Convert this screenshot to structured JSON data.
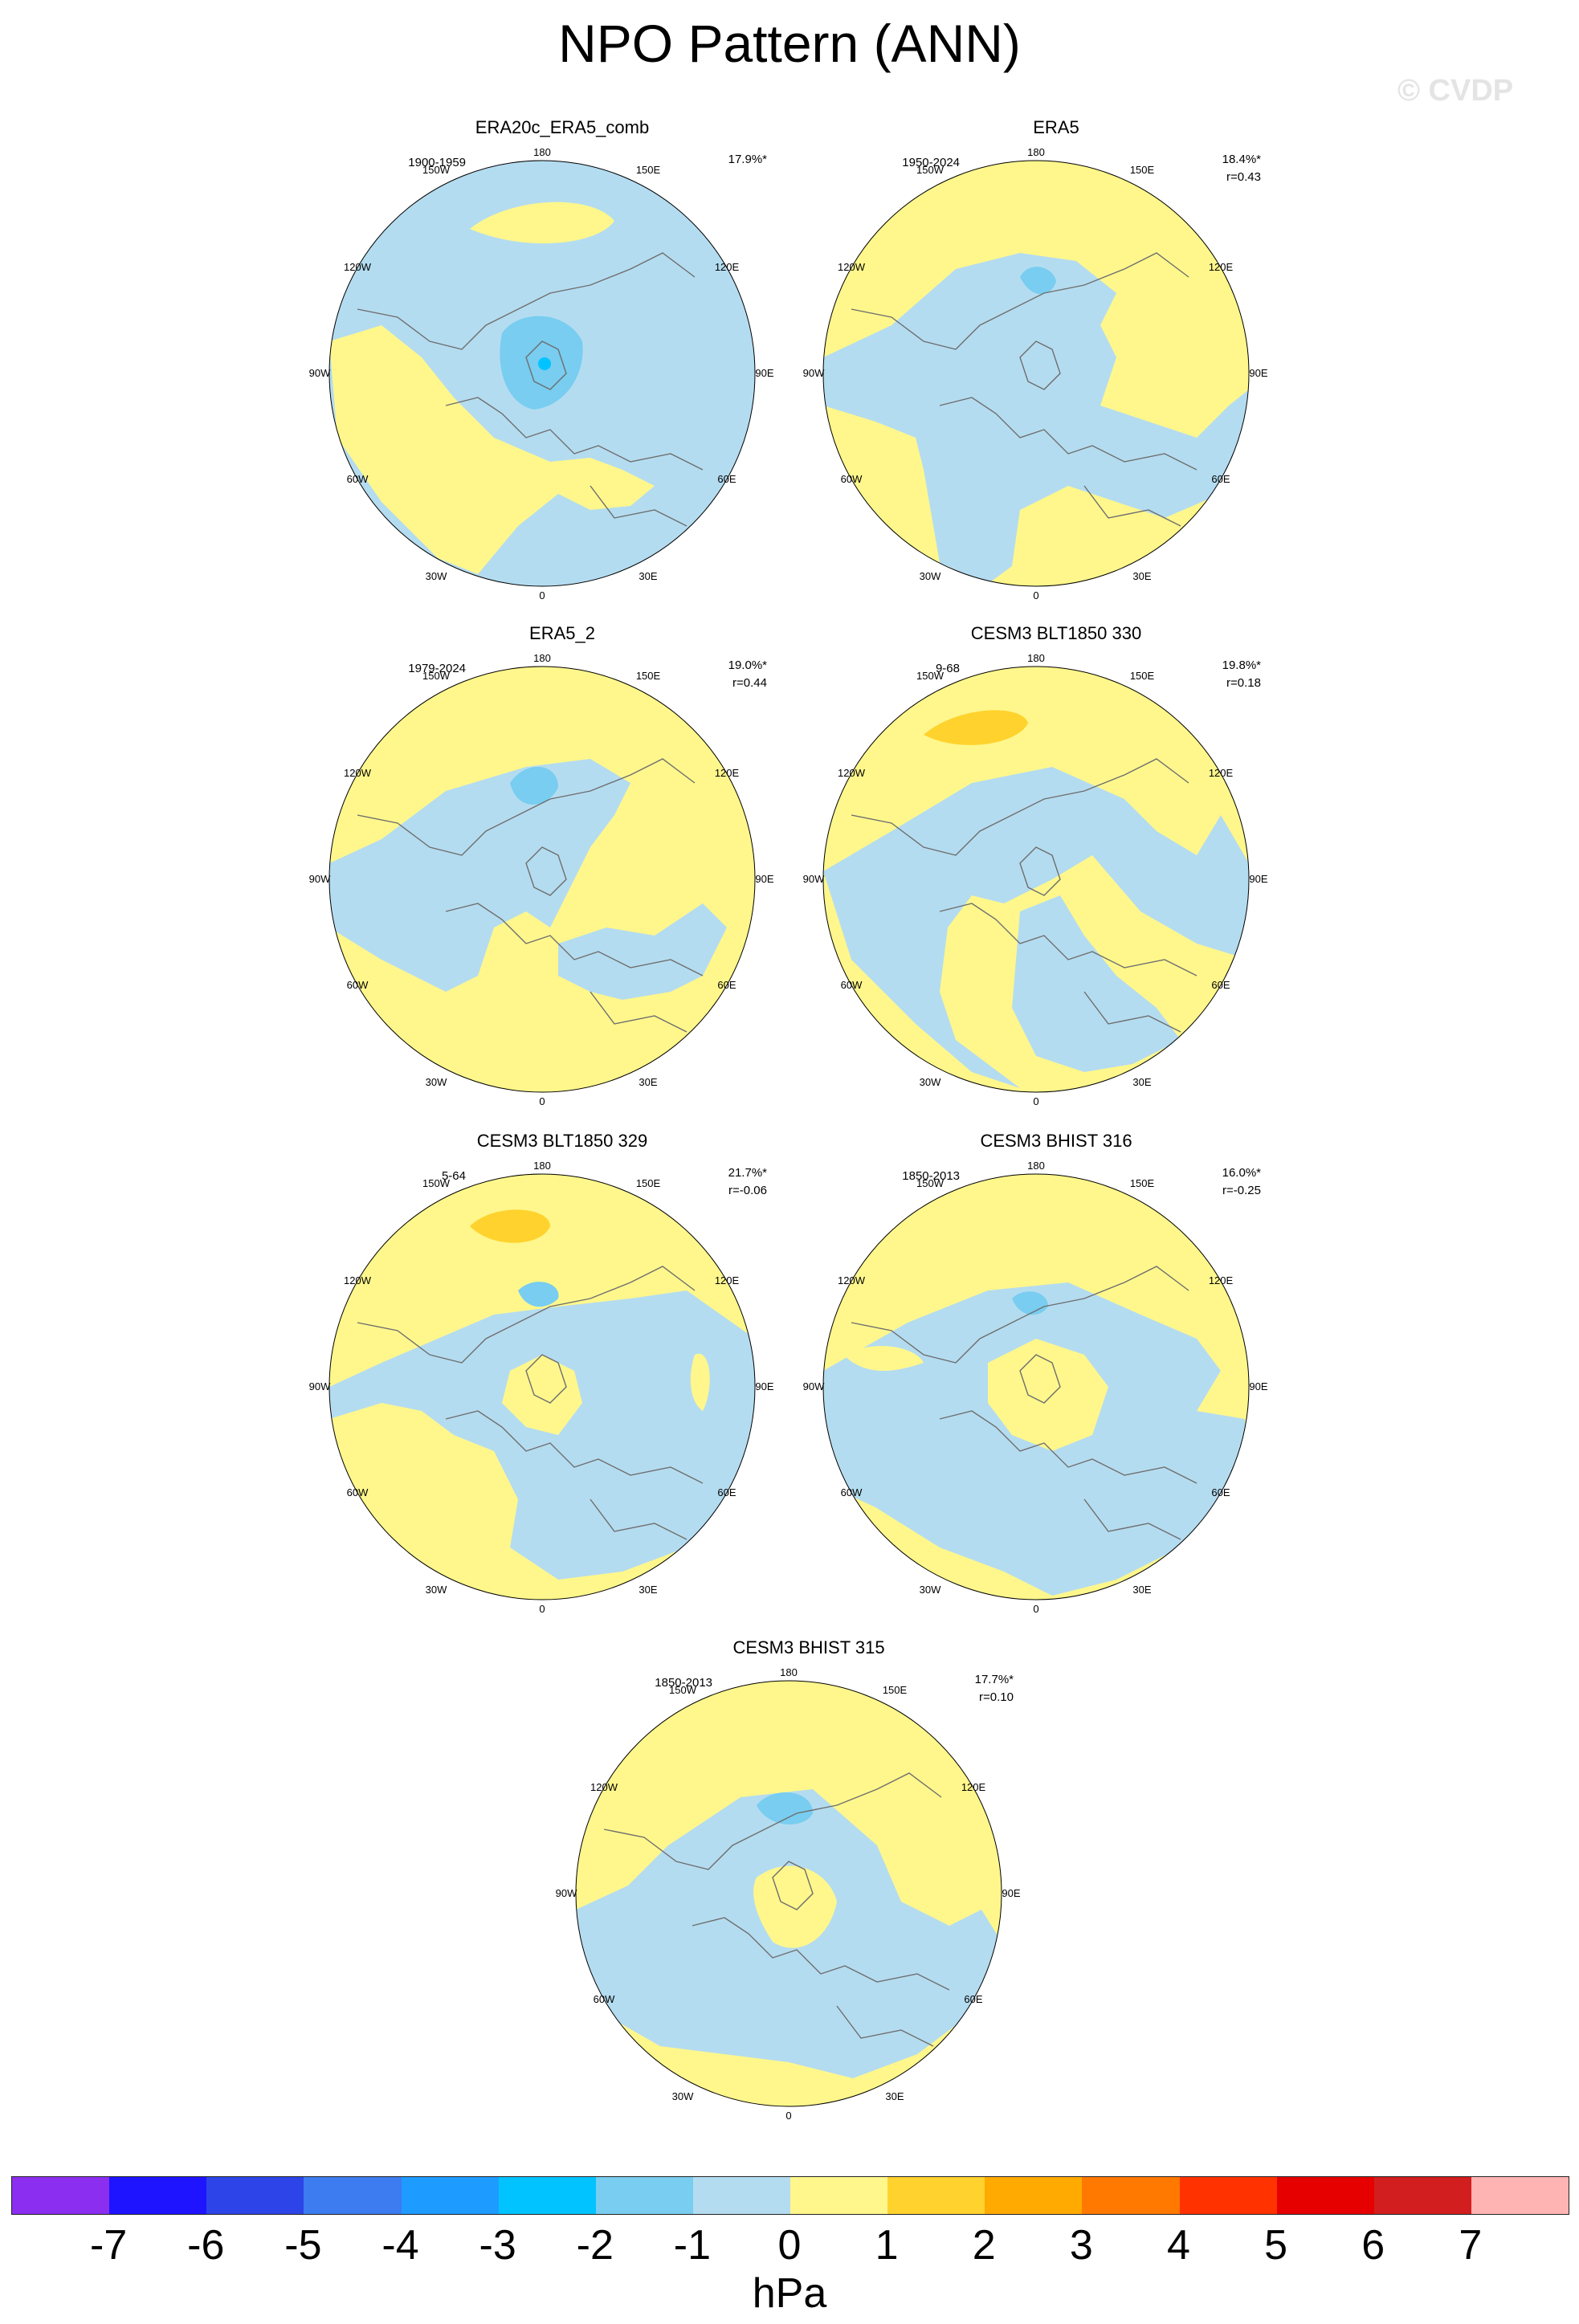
{
  "title": "NPO Pattern (ANN)",
  "watermark": "© CVDP",
  "lon_labels": {
    "n": "180",
    "nne": "150E",
    "ene": "120E",
    "e": "90E",
    "ese": "60E",
    "sse": "30E",
    "s": "0",
    "ssw": "30W",
    "wsw": "60W",
    "w": "90W",
    "wnw": "120W",
    "nnw": "150W"
  },
  "panels": [
    {
      "title": "ERA20c_ERA5_comb",
      "period": "1900-1959",
      "pct": "17.9%*",
      "r": ""
    },
    {
      "title": "ERA5",
      "period": "1950-2024",
      "pct": "18.4%*",
      "r": "r=0.43"
    },
    {
      "title": "ERA5_2",
      "period": "1979-2024",
      "pct": "19.0%*",
      "r": "r=0.44"
    },
    {
      "title": "CESM3 BLT1850 330",
      "period": "9-68",
      "pct": "19.8%*",
      "r": "r=0.18"
    },
    {
      "title": "CESM3 BLT1850 329",
      "period": "5-64",
      "pct": "21.7%*",
      "r": "r=-0.06"
    },
    {
      "title": "CESM3 BHIST 316",
      "period": "1850-2013",
      "pct": "16.0%*",
      "r": "r=-0.25"
    },
    {
      "title": "CESM3 BHIST 315",
      "period": "1850-2013",
      "pct": "17.7%*",
      "r": "r=0.10"
    }
  ],
  "colorbar": {
    "units": "hPa",
    "labels": [
      "-7",
      "-6",
      "-5",
      "-4",
      "-3",
      "-2",
      "-1",
      "0",
      "1",
      "2",
      "3",
      "4",
      "5",
      "6",
      "7"
    ],
    "colors": [
      "#8c2ef0",
      "#1e14ff",
      "#2d45e8",
      "#3c7cf0",
      "#1e9bff",
      "#00c3ff",
      "#78cdf0",
      "#b4dcf0",
      "#fff78c",
      "#ffd22d",
      "#ffaa00",
      "#ff7800",
      "#ff3200",
      "#e60000",
      "#d21e1e",
      "#ffb4b4"
    ]
  }
}
